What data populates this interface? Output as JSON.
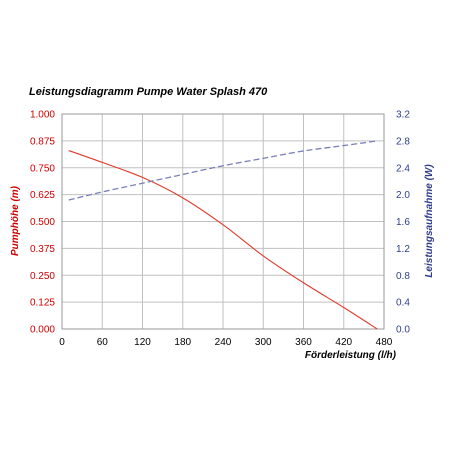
{
  "chart_data": {
    "type": "line",
    "title": "Leistungsdiagramm Pumpe Water Splash 470",
    "xlabel": "Förderleistung (l/h)",
    "ylabel_left": "Pumphöhe (m)",
    "ylabel_right": "Leistungsaufnahme (W)",
    "xlim": [
      0,
      480
    ],
    "ylim_left": [
      0,
      1
    ],
    "ylim_right": [
      0,
      3.2
    ],
    "x_ticks": [
      "0",
      "60",
      "120",
      "180",
      "240",
      "300",
      "360",
      "420",
      "480"
    ],
    "y_left_ticks": [
      "0.000",
      "0.125",
      "0.250",
      "0.375",
      "0.500",
      "0.625",
      "0.750",
      "0.875",
      "1.000"
    ],
    "y_right_ticks": [
      "0.0",
      "0.4",
      "0.8",
      "1.2",
      "1.6",
      "2.0",
      "2.4",
      "2.8",
      "3.2"
    ],
    "grid": true,
    "colors": {
      "left_axis": "#cc0000",
      "right_axis": "#2e3e8c",
      "pump_height_line": "#e03a2a",
      "power_line": "#7a80b8",
      "grid": "#c0c0c0"
    },
    "series": [
      {
        "axis": "left",
        "style": "solid",
        "x": [
          10,
          60,
          120,
          180,
          240,
          300,
          360,
          420,
          470
        ],
        "values": [
          0.83,
          0.775,
          0.705,
          0.61,
          0.485,
          0.34,
          0.215,
          0.1,
          0.0
        ]
      },
      {
        "axis": "right",
        "style": "dashed",
        "x": [
          10,
          60,
          120,
          180,
          240,
          300,
          360,
          420,
          470
        ],
        "values": [
          1.92,
          2.04,
          2.17,
          2.3,
          2.43,
          2.54,
          2.65,
          2.73,
          2.8
        ]
      }
    ]
  }
}
